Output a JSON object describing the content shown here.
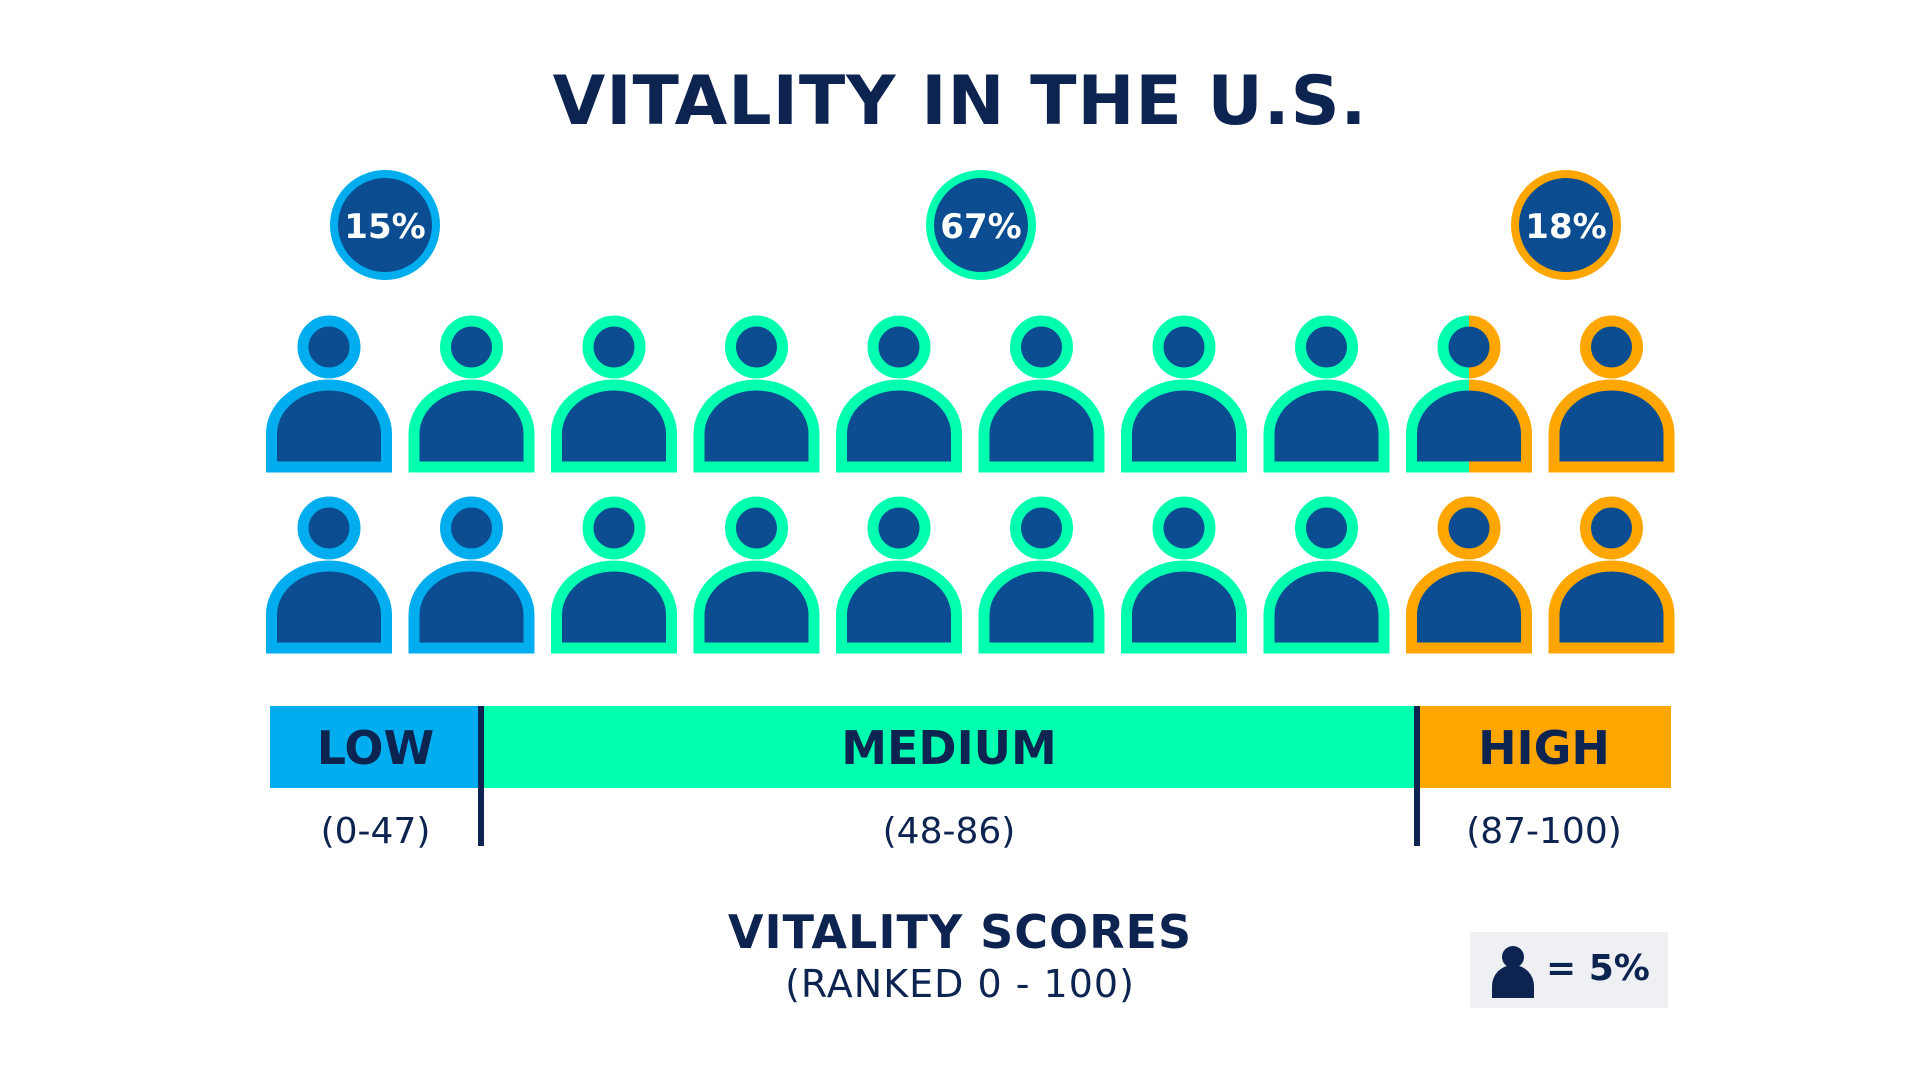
{
  "title": "VITALITY IN THE U.S.",
  "xlabel": "VITALITY SCORES",
  "xlabel_sub": "(RANKED 0 - 100)",
  "legend": {
    "text": "= 5%",
    "icon": "person-icon"
  },
  "colors": {
    "navy": "#0d2451",
    "fill": "#0b4d90",
    "low": "#00aeef",
    "medium": "#00ffae",
    "high": "#ffa600"
  },
  "chart_data": {
    "type": "pictograph",
    "unit_value": 5,
    "unit_label": "= 5%",
    "scale": {
      "min": 0,
      "max": 100
    },
    "categories": [
      {
        "name": "LOW",
        "range": "(0-47)",
        "range_min": 0,
        "range_max": 47,
        "percent": 15,
        "percent_label": "15%",
        "icons": 3,
        "color": "#00aeef"
      },
      {
        "name": "MEDIUM",
        "range": "(48-86)",
        "range_min": 48,
        "range_max": 86,
        "percent": 67,
        "percent_label": "67%",
        "icons": 13.5,
        "color": "#00ffae"
      },
      {
        "name": "HIGH",
        "range": "(87-100)",
        "range_min": 87,
        "range_max": 100,
        "percent": 18,
        "percent_label": "18%",
        "icons": 3.5,
        "color": "#ffa600"
      }
    ],
    "grid": false
  }
}
